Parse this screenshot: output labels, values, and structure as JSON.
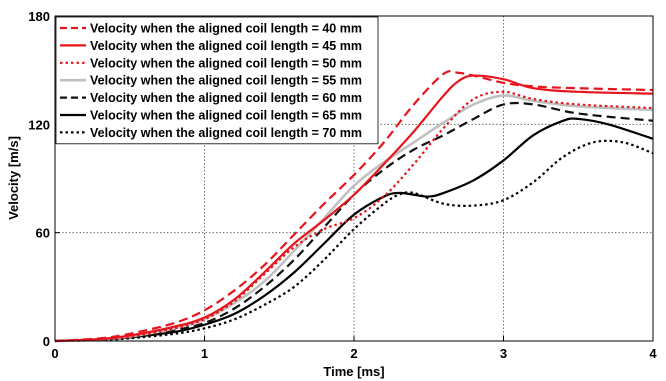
{
  "chart_data": {
    "type": "line",
    "xlabel": "Time [ms]",
    "ylabel": "Velocity [m/s]",
    "xlim": [
      0,
      4
    ],
    "ylim": [
      0,
      180
    ],
    "xticks": [
      "0",
      "1",
      "2",
      "3",
      "4"
    ],
    "yticks": [
      "0",
      "60",
      "120",
      "180"
    ],
    "grid": true,
    "legend_position": "top-left",
    "series": [
      {
        "name": "Velocity when the aligned coil length = 40 mm",
        "color": "#e8141c",
        "dash": "dashed",
        "x": [
          0,
          0.3,
          0.5,
          0.8,
          1.0,
          1.2,
          1.4,
          1.6,
          1.8,
          2.0,
          2.2,
          2.4,
          2.6,
          2.7,
          2.8,
          3.0,
          3.2,
          3.5,
          4.0
        ],
        "y": [
          0,
          1.5,
          4,
          10,
          17,
          28,
          42,
          59,
          76,
          92,
          110,
          131,
          148,
          148.5,
          147,
          143,
          141,
          140,
          139
        ]
      },
      {
        "name": "Velocity when the aligned coil length = 45 mm",
        "color": "#e8141c",
        "dash": "solid",
        "x": [
          0,
          0.3,
          0.5,
          0.8,
          1.0,
          1.2,
          1.4,
          1.6,
          1.8,
          2.0,
          2.2,
          2.4,
          2.6,
          2.7,
          2.8,
          3.0,
          3.2,
          3.5,
          4.0
        ],
        "y": [
          0,
          1,
          3,
          8,
          13,
          23,
          38,
          54,
          67,
          81,
          98,
          116,
          136,
          144,
          147,
          145,
          140,
          138,
          137
        ]
      },
      {
        "name": "Velocity when the aligned coil length = 50 mm",
        "color": "#e8141c",
        "dash": "dotted",
        "x": [
          0,
          0.3,
          0.5,
          0.8,
          1.0,
          1.2,
          1.4,
          1.6,
          1.8,
          2.0,
          2.2,
          2.4,
          2.6,
          2.8,
          3.0,
          3.2,
          3.5,
          4.0
        ],
        "y": [
          0,
          1,
          2.5,
          7,
          12,
          22,
          37,
          52,
          62,
          68,
          80,
          98,
          118,
          134,
          138,
          134,
          131,
          129
        ]
      },
      {
        "name": "Velocity when the aligned coil length = 55 mm",
        "color": "#c0c0c0",
        "dash": "solid",
        "x": [
          0,
          0.3,
          0.5,
          0.8,
          1.0,
          1.2,
          1.4,
          1.6,
          1.8,
          2.0,
          2.2,
          2.4,
          2.6,
          2.8,
          3.0,
          3.2,
          3.5,
          4.0
        ],
        "y": [
          0,
          1,
          2.5,
          7,
          12,
          21,
          33,
          50,
          68,
          86,
          99,
          110,
          121,
          131,
          136,
          133,
          130,
          128
        ]
      },
      {
        "name": "Velocity when the aligned coil length = 60 mm",
        "color": "#111111",
        "dash": "dashed",
        "x": [
          0,
          0.3,
          0.5,
          0.8,
          1.0,
          1.2,
          1.4,
          1.6,
          1.8,
          2.0,
          2.2,
          2.4,
          2.6,
          2.8,
          3.0,
          3.2,
          3.5,
          4.0
        ],
        "y": [
          0,
          1,
          2,
          6,
          10,
          18,
          30,
          45,
          63,
          81,
          95,
          106,
          114,
          123,
          131,
          131,
          126,
          122
        ]
      },
      {
        "name": "Velocity when the aligned coil length = 65 mm",
        "color": "#000000",
        "dash": "solid",
        "x": [
          0,
          0.3,
          0.5,
          0.8,
          1.0,
          1.2,
          1.4,
          1.6,
          1.8,
          2.0,
          2.2,
          2.3,
          2.4,
          2.5,
          2.6,
          2.8,
          3.0,
          3.2,
          3.4,
          3.5,
          3.7,
          4.0
        ],
        "y": [
          0,
          0.8,
          2,
          5,
          9,
          15,
          25,
          38,
          54,
          70,
          80,
          82,
          81,
          80,
          82,
          89,
          100,
          114,
          122,
          123,
          120,
          112
        ]
      },
      {
        "name": "Velocity when the aligned coil length = 70 mm",
        "color": "#000000",
        "dash": "dotted",
        "x": [
          0,
          0.3,
          0.5,
          0.8,
          1.0,
          1.2,
          1.4,
          1.6,
          1.8,
          2.0,
          2.2,
          2.3,
          2.4,
          2.6,
          2.8,
          3.0,
          3.2,
          3.4,
          3.6,
          3.8,
          4.0
        ],
        "y": [
          0,
          0.5,
          1.5,
          4,
          7,
          12,
          20,
          30,
          45,
          62,
          76,
          81,
          82,
          76,
          75,
          78,
          88,
          102,
          110,
          110,
          104
        ]
      }
    ]
  }
}
